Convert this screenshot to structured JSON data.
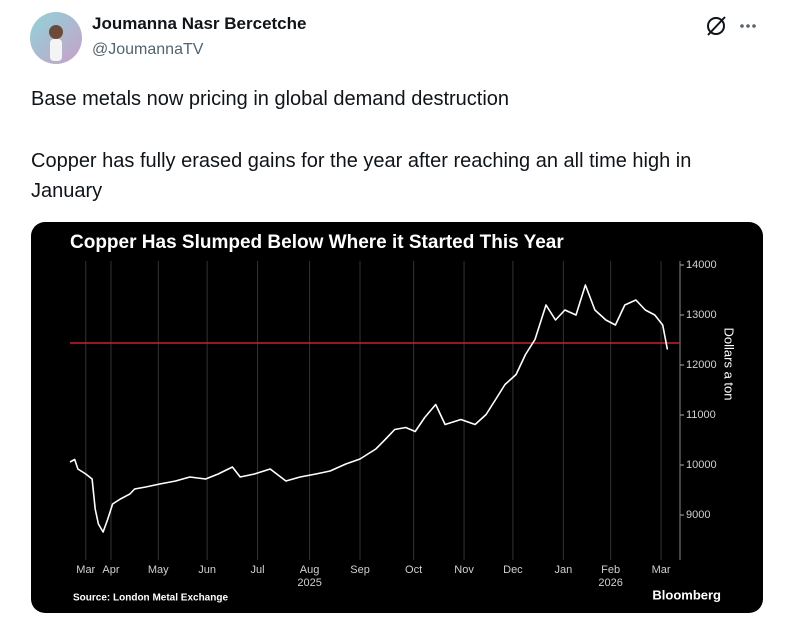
{
  "post": {
    "author_name": "Joumanna Nasr Bercetche",
    "handle": "@JoumannaTV",
    "text_lines": [
      "Base metals now pricing in global demand destruction",
      "Copper has fully erased gains for the year after reaching an all time high in January"
    ]
  },
  "chart_data": {
    "type": "line",
    "title": "Copper Has Slumped Below Where it Started This Year",
    "y_label": "Dollars a ton",
    "source": "Source: London Metal Exchange",
    "brand": "Bloomberg",
    "x": [
      0,
      3,
      5,
      10,
      14,
      16,
      18,
      21,
      24,
      27,
      32,
      38,
      41,
      48,
      57,
      67,
      76,
      86,
      94,
      103,
      108,
      117,
      127,
      137,
      146,
      156,
      165,
      175,
      184,
      194,
      200,
      206,
      213,
      219,
      225,
      232,
      238,
      248,
      257,
      264,
      270,
      276,
      283,
      289,
      295,
      302,
      308,
      314,
      321,
      327,
      333,
      340,
      346,
      352,
      359,
      365,
      371,
      376,
      379
    ],
    "series": [
      {
        "color": "#ffffff",
        "values": [
          10060,
          10110,
          9920,
          9820,
          9720,
          9120,
          8820,
          8660,
          8920,
          9220,
          9320,
          9420,
          9520,
          9560,
          9620,
          9680,
          9760,
          9720,
          9820,
          9960,
          9760,
          9820,
          9920,
          9680,
          9760,
          9820,
          9880,
          10020,
          10120,
          10320,
          10510,
          10710,
          10750,
          10670,
          10950,
          11210,
          10810,
          10910,
          10810,
          11010,
          11310,
          11610,
          11810,
          12210,
          12510,
          13200,
          12900,
          13100,
          13000,
          13600,
          13100,
          12900,
          12800,
          13200,
          13300,
          13100,
          13000,
          12800,
          12310
        ]
      }
    ],
    "reference_line": {
      "value": 12440,
      "color": "#c8202c"
    },
    "xlim": [
      0,
      387
    ],
    "xticks": [
      {
        "value": 10,
        "label": "Mar"
      },
      {
        "value": 26,
        "label": "Apr"
      },
      {
        "value": 56,
        "label": "May"
      },
      {
        "value": 87,
        "label": "Jun"
      },
      {
        "value": 119,
        "label": "Jul"
      },
      {
        "value": 152,
        "label": "Aug"
      },
      {
        "value": 184,
        "label": "Sep"
      },
      {
        "value": 218,
        "label": "Oct"
      },
      {
        "value": 250,
        "label": "Nov"
      },
      {
        "value": 281,
        "label": "Dec"
      },
      {
        "value": 313,
        "label": "Jan"
      },
      {
        "value": 343,
        "label": "Feb"
      },
      {
        "value": 375,
        "label": "Mar"
      }
    ],
    "x_year_labels": [
      {
        "value": 152,
        "label": "2025"
      },
      {
        "value": 343,
        "label": "2026"
      }
    ],
    "ylim": [
      8100,
      14000
    ],
    "yticks": [
      9000,
      10000,
      11000,
      12000,
      13000,
      14000
    ]
  }
}
